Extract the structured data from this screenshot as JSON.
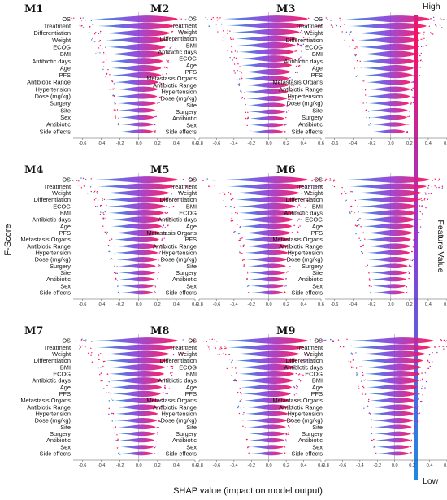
{
  "chart_data": {
    "type": "violin",
    "y_axis_title": "F-Score",
    "x_axis_title": "SHAP value (impact on model output)",
    "colorbar": {
      "title": "Feature Value",
      "high_label": "High",
      "low_label": "Low",
      "low_color": "#1e88e5",
      "high_color": "#ff0d57"
    },
    "panels": [
      {
        "label": "M1",
        "features": [
          "OS",
          "Treatment",
          "Differentiation",
          "Weight",
          "ECOG",
          "BMI",
          "Antibiotic days",
          "Age",
          "PFS",
          "Antibiotic Range",
          "Hypertension",
          "Dose (mg/kg)",
          "Surgery",
          "Site",
          "Sex",
          "Antibiotic",
          "Side effects"
        ],
        "importance": [
          1.0,
          0.85,
          0.72,
          0.62,
          0.55,
          0.55,
          0.45,
          0.4,
          0.4,
          0.3,
          0.28,
          0.25,
          0.2,
          0.18,
          0.15,
          0.12,
          0.1
        ],
        "xlim": [
          -0.7,
          0.6
        ],
        "ticks": [
          -0.6,
          -0.4,
          -0.2,
          0.0,
          0.2,
          0.4,
          0.6
        ]
      },
      {
        "label": "M2",
        "features": [
          "OS",
          "Treatment",
          "Weight",
          "Differentiation",
          "BMI",
          "Antibiotic days",
          "ECOG",
          "Age",
          "PFS",
          "Metastasis Organs",
          "Antibiotic Range",
          "Hypertension",
          "Dose (mg/kg)",
          "Site",
          "Surgery",
          "Antibiotic",
          "Sex",
          "Side effects"
        ],
        "importance": [
          1.0,
          0.9,
          0.7,
          0.6,
          0.55,
          0.5,
          0.45,
          0.42,
          0.38,
          0.32,
          0.3,
          0.28,
          0.25,
          0.2,
          0.18,
          0.15,
          0.12,
          0.1
        ],
        "xlim": [
          -0.8,
          0.6
        ],
        "ticks": [
          -0.8,
          -0.6,
          -0.4,
          -0.2,
          0.0,
          0.2,
          0.4,
          0.6
        ]
      },
      {
        "label": "M3",
        "features": [
          "OS",
          "Treatment",
          "Weight",
          "Differentiation",
          "ECOG",
          "BMI",
          "Antibiotic days",
          "Age",
          "PFS",
          "Metastasis Organs",
          "Antibiotic Range",
          "Hypertension",
          "Dose (mg/kg)",
          "Site",
          "Surgery",
          "Antibiotic",
          "Side effects"
        ],
        "importance": [
          1.0,
          0.88,
          0.7,
          0.6,
          0.55,
          0.5,
          0.45,
          0.42,
          0.38,
          0.32,
          0.3,
          0.28,
          0.25,
          0.2,
          0.18,
          0.15,
          0.1
        ],
        "xlim": [
          -0.7,
          0.6
        ],
        "ticks": [
          -0.6,
          -0.4,
          -0.2,
          0.0,
          0.2,
          0.4,
          0.6
        ]
      },
      {
        "label": "M4",
        "features": [
          "OS",
          "Treatment",
          "Weight",
          "Differentiation",
          "ECOG",
          "BMI",
          "Antibiotic days",
          "Age",
          "PFS",
          "Metastasis Organs",
          "Antibiotic Range",
          "Hypertension",
          "Dose (mg/kg)",
          "Surgery",
          "Site",
          "Antibiotic",
          "Sex",
          "Side effects"
        ],
        "importance": [
          1.0,
          0.88,
          0.7,
          0.6,
          0.55,
          0.5,
          0.45,
          0.42,
          0.38,
          0.32,
          0.3,
          0.28,
          0.25,
          0.2,
          0.18,
          0.15,
          0.12,
          0.1
        ],
        "xlim": [
          -0.7,
          0.6
        ],
        "ticks": [
          -0.6,
          -0.4,
          -0.2,
          0.0,
          0.2,
          0.4,
          0.6
        ]
      },
      {
        "label": "M5",
        "features": [
          "OS",
          "Treatment",
          "Weight",
          "Differentiation",
          "BMI",
          "ECOG",
          "Antibiotic days",
          "Age",
          "Metastasis Organs",
          "PFS",
          "Antibiotic Range",
          "Hypertension",
          "Dose (mg/kg)",
          "Site",
          "Surgery",
          "Antibiotic",
          "Sex",
          "Side effects"
        ],
        "importance": [
          1.0,
          0.88,
          0.7,
          0.6,
          0.55,
          0.5,
          0.45,
          0.42,
          0.38,
          0.32,
          0.3,
          0.28,
          0.25,
          0.2,
          0.18,
          0.15,
          0.12,
          0.1
        ],
        "xlim": [
          -0.8,
          0.6
        ],
        "ticks": [
          -0.8,
          -0.6,
          -0.4,
          -0.2,
          0.0,
          0.2,
          0.4,
          0.6
        ]
      },
      {
        "label": "M6",
        "features": [
          "OS",
          "Treatment",
          "Weight",
          "Differentiation",
          "BMI",
          "Antibiotic days",
          "ECOG",
          "Age",
          "PFS",
          "Metastasis Organs",
          "Antibiotic Range",
          "Hypertension",
          "Dose (mg/kg)",
          "Surgery",
          "Site",
          "Antibiotic",
          "Sex",
          "Side effects"
        ],
        "importance": [
          1.0,
          0.88,
          0.7,
          0.6,
          0.55,
          0.5,
          0.45,
          0.42,
          0.38,
          0.32,
          0.3,
          0.28,
          0.25,
          0.2,
          0.18,
          0.15,
          0.12,
          0.1
        ],
        "xlim": [
          -0.7,
          0.6
        ],
        "ticks": [
          -0.6,
          -0.4,
          -0.2,
          0.0,
          0.2,
          0.4,
          0.6
        ]
      },
      {
        "label": "M7",
        "features": [
          "OS",
          "Treatment",
          "Weight",
          "Differentiation",
          "BMI",
          "ECOG",
          "Antibiotic days",
          "Age",
          "PFS",
          "Metastasis Organs",
          "Antibiotic Range",
          "Hypertension",
          "Dose (mg/kg)",
          "Site",
          "Surgery",
          "Antibiotic",
          "Sex",
          "Side effects"
        ],
        "importance": [
          1.0,
          0.88,
          0.7,
          0.6,
          0.55,
          0.5,
          0.45,
          0.42,
          0.38,
          0.32,
          0.3,
          0.28,
          0.25,
          0.2,
          0.18,
          0.15,
          0.12,
          0.1
        ],
        "xlim": [
          -0.7,
          0.6
        ],
        "ticks": [
          -0.6,
          -0.4,
          -0.2,
          0.0,
          0.2,
          0.4,
          0.6
        ]
      },
      {
        "label": "M8",
        "features": [
          "OS",
          "Treatment",
          "Weight",
          "Differentiation",
          "ECOG",
          "BMI",
          "Antibiotic days",
          "Age",
          "PFS",
          "Metastasis Organs",
          "Antibiotic Range",
          "Hypertension",
          "Dose (mg/kg)",
          "Site",
          "Surgery",
          "Antibiotic",
          "Sex",
          "Side effects"
        ],
        "importance": [
          1.0,
          0.88,
          0.7,
          0.6,
          0.55,
          0.5,
          0.45,
          0.42,
          0.38,
          0.32,
          0.3,
          0.28,
          0.25,
          0.2,
          0.18,
          0.15,
          0.12,
          0.1
        ],
        "xlim": [
          -0.8,
          0.6
        ],
        "ticks": [
          -0.8,
          -0.6,
          -0.4,
          -0.2,
          0.0,
          0.2,
          0.4,
          0.6
        ]
      },
      {
        "label": "M9",
        "features": [
          "OS",
          "Treatment",
          "Weight",
          "Differentiation",
          "Antibiotic days",
          "ECOG",
          "BMI",
          "Age",
          "PFS",
          "Metastasis Organs",
          "Antibiotic Range",
          "Hypertension",
          "Dose (mg/kg)",
          "Site",
          "Surgery",
          "Antibiotic",
          "Sex",
          "Side effects"
        ],
        "importance": [
          1.0,
          0.88,
          0.7,
          0.6,
          0.55,
          0.5,
          0.45,
          0.42,
          0.38,
          0.32,
          0.3,
          0.28,
          0.25,
          0.2,
          0.18,
          0.15,
          0.12,
          0.1
        ],
        "xlim": [
          -0.8,
          0.6
        ],
        "ticks": [
          -0.8,
          -0.6,
          -0.4,
          -0.2,
          0.0,
          0.2,
          0.4,
          0.6
        ]
      }
    ]
  }
}
